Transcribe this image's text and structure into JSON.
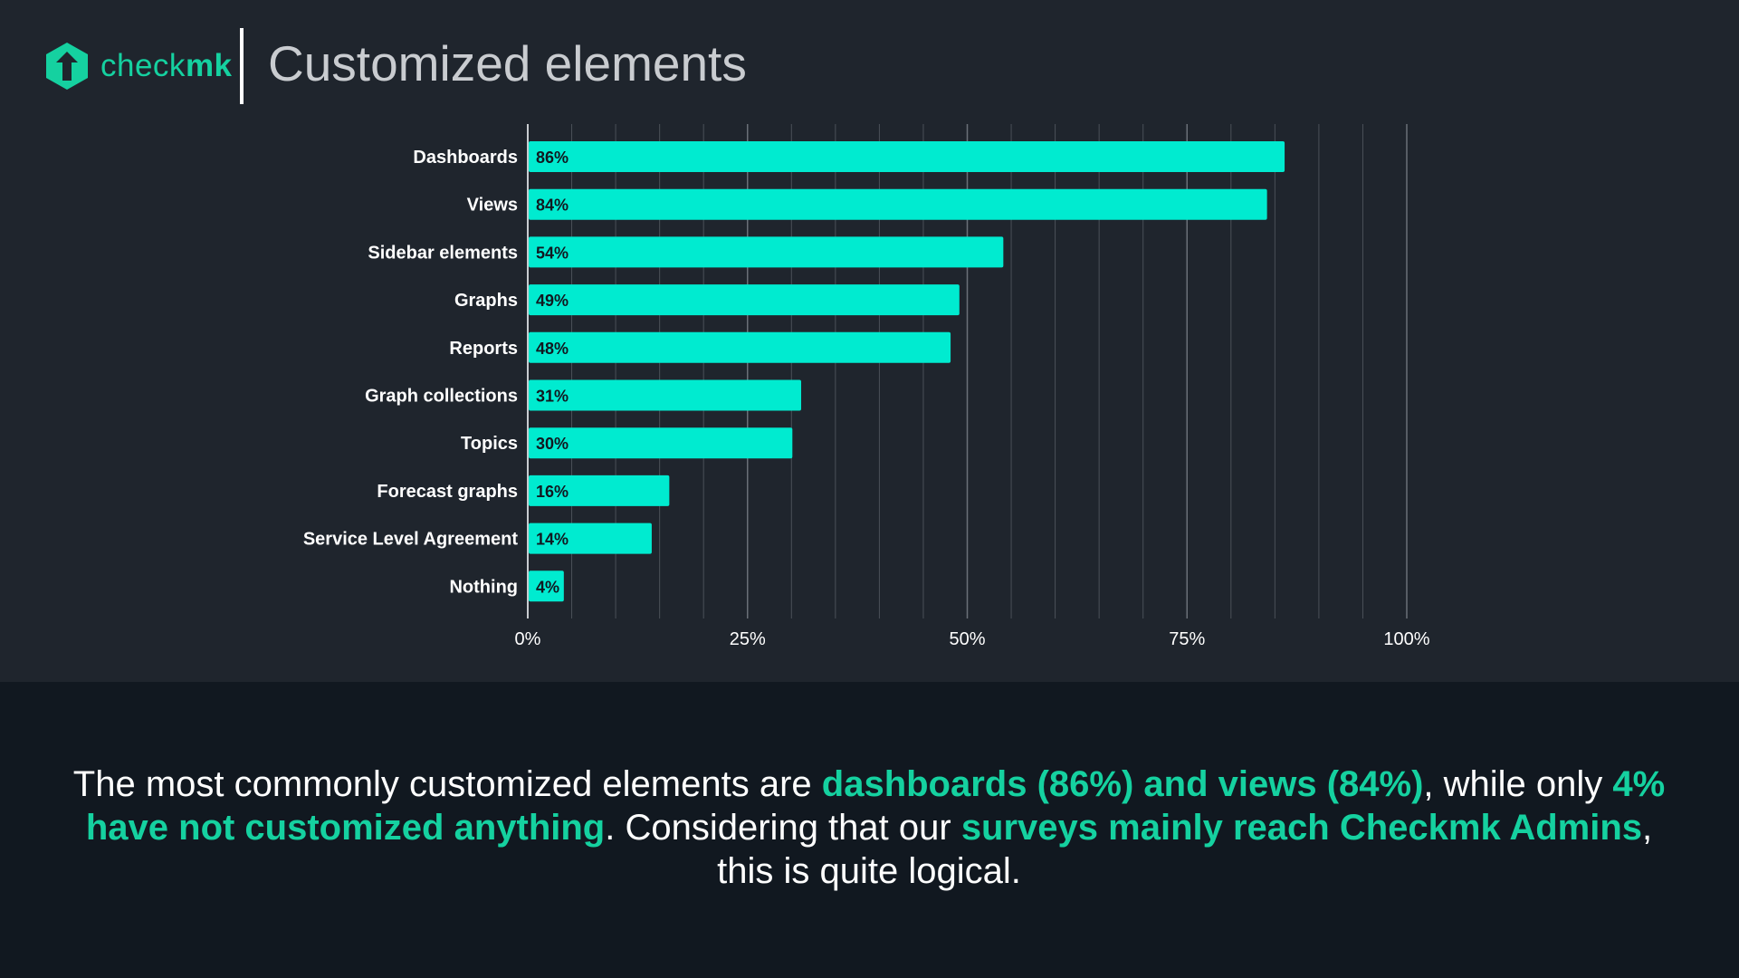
{
  "header": {
    "logo_text_a": "check",
    "logo_text_b": "mk",
    "title": "Customized elements"
  },
  "colors": {
    "bar": "#00ebd0",
    "accent": "#15d1a0",
    "top_background": "#1f252d",
    "bottom_background": "#111820"
  },
  "icons": [
    "checkmk-logo-icon"
  ],
  "chart_data": {
    "type": "bar",
    "orientation": "horizontal",
    "categories": [
      "Dashboards",
      "Views",
      "Sidebar elements",
      "Graphs",
      "Reports",
      "Graph collections",
      "Topics",
      "Forecast graphs",
      "Service Level Agreement",
      "Nothing"
    ],
    "values": [
      86,
      84,
      54,
      49,
      48,
      31,
      30,
      16,
      14,
      4
    ],
    "value_labels": [
      "86%",
      "84%",
      "54%",
      "49%",
      "48%",
      "31%",
      "30%",
      "16%",
      "14%",
      "4%"
    ],
    "xlim": [
      0,
      100
    ],
    "x_ticks": [
      0,
      25,
      50,
      75,
      100
    ],
    "x_tick_labels": [
      "0%",
      "25%",
      "50%",
      "75%",
      "100%"
    ],
    "grid": true,
    "legend": "none"
  },
  "summary": {
    "t1": "The most commonly customized elements are ",
    "h1": "dashboards (86%) and views (84%)",
    "t2": ", while only ",
    "h2": "4% have not customized anything",
    "t3": ". Considering that our ",
    "h3": "surveys mainly reach Checkmk Admins",
    "t4": ", this is quite logical."
  }
}
